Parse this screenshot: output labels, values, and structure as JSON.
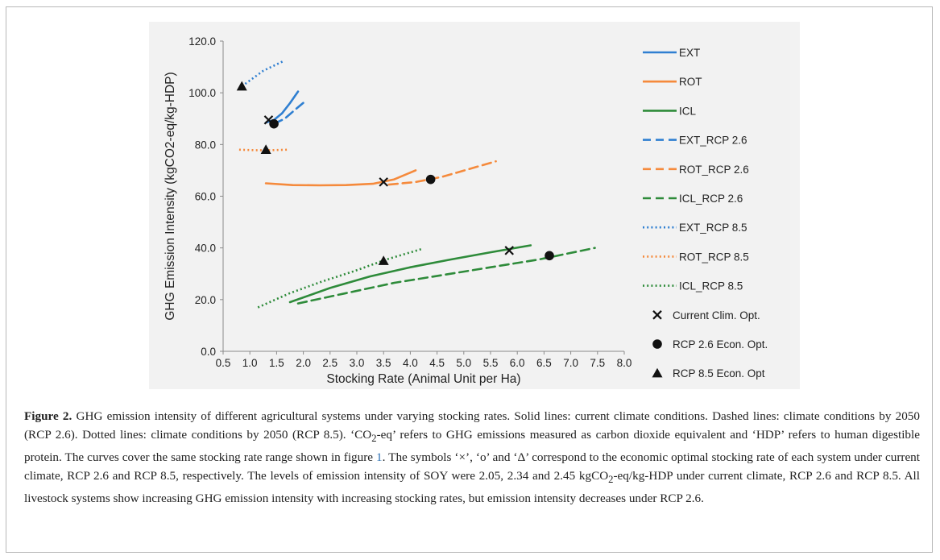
{
  "figure_label": "Figure 2.",
  "caption_parts": [
    "GHG emission intensity of different agricultural systems under varying stocking rates. Solid lines: current climate conditions. Dashed lines: climate conditions by 2050 (RCP 2.6). Dotted lines: climate conditions by 2050 (RCP 8.5). ‘CO",
    "2",
    "-eq’ refers to GHG emissions measured as carbon dioxide equivalent and ‘HDP’ refers to human digestible protein. The curves cover the same stocking rate range shown in figure ",
    "1",
    ". The symbols ‘×’, ‘o’ and ‘Δ’ correspond to the economic optimal stocking rate of each system under current climate, RCP 2.6 and RCP 8.5, respectively. The levels of emission intensity of SOY were 2.05, 2.34 and 2.45 kgCO",
    "2",
    "-eq/kg-HDP under current climate, RCP 2.6 and RCP 8.5. All livestock systems show increasing GHG emission intensity with increasing stocking rates, but emission intensity decreases under RCP 2.6."
  ],
  "colors": {
    "EXT": "#2f7fd1",
    "ROT": "#f58a3c",
    "ICL": "#2e8b3a",
    "marker": "#111111",
    "background": "#f2f2f2"
  },
  "chart_data": {
    "type": "line",
    "xlabel": "Stocking Rate (Animal Unit per Ha)",
    "ylabel": "GHG Emission Intensity (kgCO2-eq/kg-HDP)",
    "xlim": [
      0.5,
      8.0
    ],
    "ylim": [
      0.0,
      120.0
    ],
    "xticks": [
      "0.5",
      "1.0",
      "1.5",
      "2.0",
      "2.5",
      "3.0",
      "3.5",
      "4.0",
      "4.5",
      "5.0",
      "5.5",
      "6.0",
      "6.5",
      "7.0",
      "7.5",
      "8.0"
    ],
    "yticks": [
      "0.0",
      "20.0",
      "40.0",
      "60.0",
      "80.0",
      "100.0",
      "120.0"
    ],
    "grid": false,
    "legend_position": "right",
    "series": [
      {
        "name": "EXT",
        "style": "solid",
        "color": "#2f7fd1",
        "x": [
          1.3,
          1.45,
          1.6,
          1.75,
          1.9
        ],
        "y": [
          88.5,
          89.5,
          92.0,
          96.0,
          100.5
        ]
      },
      {
        "name": "ROT",
        "style": "solid",
        "color": "#f58a3c",
        "x": [
          1.3,
          1.8,
          2.3,
          2.8,
          3.3,
          3.7,
          4.1
        ],
        "y": [
          65.0,
          64.3,
          64.2,
          64.3,
          64.8,
          66.5,
          70.0
        ]
      },
      {
        "name": "ICL",
        "style": "solid",
        "color": "#2e8b3a",
        "x": [
          1.75,
          2.5,
          3.25,
          4.0,
          4.75,
          5.5,
          6.25
        ],
        "y": [
          19.0,
          24.5,
          29.0,
          32.5,
          35.5,
          38.3,
          41.0
        ]
      },
      {
        "name": "EXT_RCP 2.6",
        "style": "dashed",
        "color": "#2f7fd1",
        "x": [
          1.45,
          1.65,
          1.85,
          2.05
        ],
        "y": [
          88.0,
          90.0,
          93.5,
          97.0
        ]
      },
      {
        "name": "ROT_RCP 2.6",
        "style": "dashed",
        "color": "#f58a3c",
        "x": [
          3.6,
          4.1,
          4.6,
          5.1,
          5.6
        ],
        "y": [
          64.5,
          65.5,
          67.5,
          70.5,
          73.5
        ]
      },
      {
        "name": "ICL_RCP 2.6",
        "style": "dashed",
        "color": "#2e8b3a",
        "x": [
          1.9,
          2.8,
          3.7,
          4.6,
          5.5,
          6.4,
          7.45
        ],
        "y": [
          18.5,
          22.5,
          26.5,
          29.5,
          32.5,
          35.5,
          40.0
        ]
      },
      {
        "name": "EXT_RCP 8.5",
        "style": "dotted",
        "color": "#2f7fd1",
        "x": [
          0.85,
          1.05,
          1.25,
          1.45,
          1.65
        ],
        "y": [
          102.5,
          105.5,
          108.5,
          110.5,
          112.5
        ]
      },
      {
        "name": "ROT_RCP 8.5",
        "style": "dotted",
        "color": "#f58a3c",
        "x": [
          0.8,
          1.1,
          1.4,
          1.7
        ],
        "y": [
          78.0,
          77.8,
          77.8,
          78.0
        ]
      },
      {
        "name": "ICL_RCP 8.5",
        "style": "dotted",
        "color": "#2e8b3a",
        "x": [
          1.15,
          1.75,
          2.35,
          2.95,
          3.55,
          4.2
        ],
        "y": [
          17.0,
          22.5,
          27.0,
          31.0,
          35.5,
          39.5
        ]
      }
    ],
    "markers": [
      {
        "name": "Current Clim. Opt.",
        "shape": "x",
        "points": [
          {
            "x": 1.35,
            "y": 89.5
          },
          {
            "x": 3.5,
            "y": 65.5
          },
          {
            "x": 5.85,
            "y": 39.0
          }
        ]
      },
      {
        "name": "RCP 2.6 Econ. Opt.",
        "shape": "circle",
        "points": [
          {
            "x": 1.45,
            "y": 88.0
          },
          {
            "x": 4.38,
            "y": 66.5
          },
          {
            "x": 6.6,
            "y": 37.0
          }
        ]
      },
      {
        "name": "RCP 8.5 Econ. Opt",
        "shape": "triangle",
        "points": [
          {
            "x": 0.85,
            "y": 102.5
          },
          {
            "x": 1.3,
            "y": 78.0
          },
          {
            "x": 3.5,
            "y": 35.0
          }
        ]
      }
    ]
  }
}
